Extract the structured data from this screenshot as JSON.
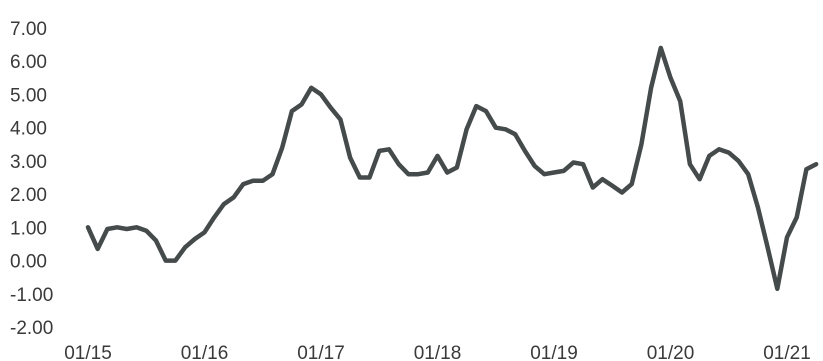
{
  "chart_data": {
    "type": "line",
    "title": "",
    "xlabel": "",
    "ylabel": "",
    "ylim": [
      -2,
      7
    ],
    "y_ticks": [
      "7.00",
      "6.00",
      "5.00",
      "4.00",
      "3.00",
      "2.00",
      "1.00",
      "0.00",
      "-1.00",
      "-2.00"
    ],
    "x_ticks": [
      "01/15",
      "01/16",
      "01/17",
      "01/18",
      "01/19",
      "01/20",
      "01/21"
    ],
    "grid": false,
    "series": [
      {
        "color": "#454a4b",
        "x": [
          "01/15",
          "02/15",
          "03/15",
          "04/15",
          "05/15",
          "06/15",
          "07/15",
          "08/15",
          "09/15",
          "10/15",
          "11/15",
          "12/15",
          "01/16",
          "02/16",
          "03/16",
          "04/16",
          "05/16",
          "06/16",
          "07/16",
          "08/16",
          "09/16",
          "10/16",
          "11/16",
          "12/16",
          "01/17",
          "02/17",
          "03/17",
          "04/17",
          "05/17",
          "06/17",
          "07/17",
          "08/17",
          "09/17",
          "10/17",
          "11/17",
          "12/17",
          "01/18",
          "02/18",
          "03/18",
          "04/18",
          "05/18",
          "06/18",
          "07/18",
          "08/18",
          "09/18",
          "10/18",
          "11/18",
          "12/18",
          "01/19",
          "02/19",
          "03/19",
          "04/19",
          "05/19",
          "06/19",
          "07/19",
          "08/19",
          "09/19",
          "10/19",
          "11/19",
          "12/19",
          "01/20",
          "02/20",
          "03/20",
          "04/20",
          "05/20",
          "06/20",
          "07/20",
          "08/20",
          "09/20",
          "10/20",
          "11/20",
          "12/20",
          "01/21",
          "02/21",
          "03/21",
          "04/21"
        ],
        "values": [
          1.0,
          0.35,
          0.95,
          1.0,
          0.95,
          1.0,
          0.9,
          0.6,
          0.0,
          0.0,
          0.4,
          0.65,
          0.85,
          1.3,
          1.7,
          1.9,
          2.3,
          2.4,
          2.4,
          2.6,
          3.4,
          4.5,
          4.7,
          5.2,
          5.0,
          4.6,
          4.25,
          3.1,
          2.5,
          2.5,
          3.3,
          3.35,
          2.9,
          2.6,
          2.6,
          2.65,
          3.15,
          2.65,
          2.8,
          3.95,
          4.65,
          4.5,
          4.0,
          3.95,
          3.8,
          3.3,
          2.85,
          2.6,
          2.65,
          2.7,
          2.95,
          2.9,
          2.2,
          2.45,
          2.25,
          2.05,
          2.3,
          3.5,
          5.2,
          6.4,
          5.5,
          4.8,
          2.9,
          2.45,
          3.15,
          3.35,
          3.25,
          3.0,
          2.6,
          1.6,
          0.4,
          -0.85,
          0.7,
          1.3,
          2.75,
          2.9
        ]
      }
    ]
  }
}
